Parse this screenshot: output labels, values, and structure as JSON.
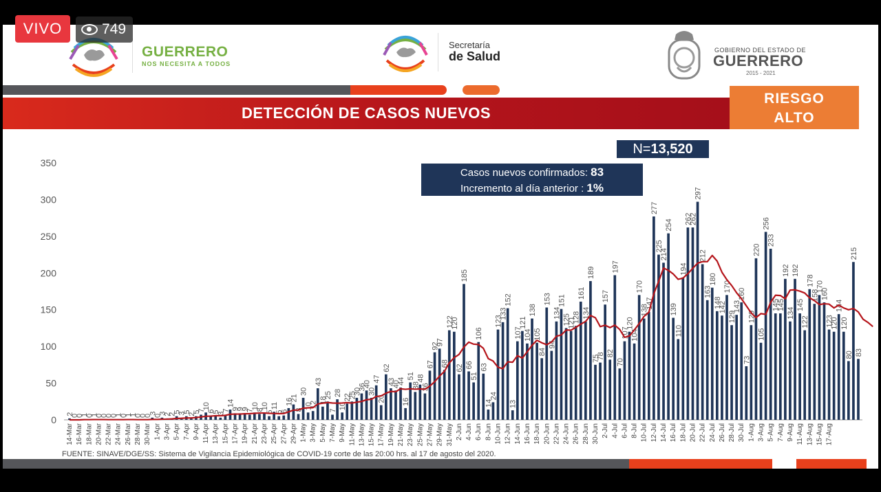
{
  "stream": {
    "live_label": "VIVO",
    "viewers": "749"
  },
  "header": {
    "brand_name": "GUERRERO",
    "brand_tagline": "NOS NECESITA A TODOS",
    "salud_line1": "Secretaría",
    "salud_line2": "de Salud",
    "gob_line1": "GOBIERNO DEL ESTADO DE",
    "gob_line2": "GUERRERO",
    "gob_period": "2015 - 2021"
  },
  "banner": {
    "title": "DETECCIÓN DE CASOS NUEVOS",
    "risk_line1": "RIESGO",
    "risk_line2": "ALTO"
  },
  "summary": {
    "n_label": "N=",
    "n_value": "13,520",
    "confirmed_label": "Casos nuevos confirmados:",
    "confirmed_value": "83",
    "increment_label": "Incremento al día anterior :",
    "increment_value": "1%"
  },
  "footer": {
    "source": "FUENTE: SINAVE/DGE/SS: Sistema de Vigilancia Epidemiológica de COVID-19 corte de las 20:00 hrs. al 17 de agosto del 2020."
  },
  "colors": {
    "bar": "#1f3558",
    "line": "#b5151b",
    "accent_orange": "#ec7d34",
    "accent_red": "#e8401c"
  },
  "chart_data": {
    "type": "bar",
    "ylim": [
      0,
      350
    ],
    "yticks": [
      0,
      50,
      100,
      150,
      200,
      250,
      300,
      350
    ],
    "grid": false,
    "x_tick_labels": [
      "14-Mar",
      "16-Mar",
      "18-Mar",
      "20-Mar",
      "22-Mar",
      "24-Mar",
      "26-Mar",
      "28-Mar",
      "30-Mar",
      "1-Apr",
      "3-Apr",
      "5-Apr",
      "7-Apr",
      "9-Apr",
      "11-Apr",
      "13-Apr",
      "15-Apr",
      "17-Apr",
      "19-Apr",
      "21-Apr",
      "23-Apr",
      "25-Apr",
      "27-Apr",
      "29-Apr",
      "1-May",
      "3-May",
      "5-May",
      "7-May",
      "9-May",
      "11-May",
      "13-May",
      "15-May",
      "17-May",
      "19-May",
      "21-May",
      "23-May",
      "25-May",
      "27-May",
      "29-May",
      "31-May",
      "2-Jun",
      "4-Jun",
      "6-Jun",
      "8-Jun",
      "10-Jun",
      "12-Jun",
      "14-Jun",
      "16-Jun",
      "18-Jun",
      "20-Jun",
      "22-Jun",
      "24-Jun",
      "26-Jun",
      "28-Jun",
      "30-Jun",
      "2-Jul",
      "4-Jul",
      "6-Jul",
      "8-Jul",
      "10-Jul",
      "12-Jul",
      "14-Jul",
      "16-Jul",
      "18-Jul",
      "20-Jul",
      "22-Jul",
      "24-Jul",
      "26-Jul",
      "28-Jul",
      "30-Jul",
      "1-Aug",
      "3-Aug",
      "5-Aug",
      "7-Aug",
      "9-Aug",
      "11-Aug",
      "13-Aug",
      "15-Aug",
      "17-Aug"
    ],
    "series": [
      {
        "type": "bar",
        "values": [
          2,
          0,
          0,
          1,
          0,
          1,
          0,
          0,
          0,
          0,
          1,
          0,
          1,
          1,
          0,
          0,
          0,
          3,
          0,
          3,
          2,
          2,
          5,
          3,
          5,
          2,
          5,
          7,
          10,
          6,
          5,
          3,
          7,
          14,
          9,
          9,
          9,
          7,
          10,
          8,
          10,
          5,
          11,
          5,
          6,
          16,
          21,
          8,
          30,
          10,
          12,
          43,
          18,
          25,
          7,
          28,
          10,
          22,
          25,
          30,
          36,
          40,
          30,
          47,
          20,
          62,
          43,
          40,
          44,
          16,
          51,
          38,
          48,
          36,
          67,
          92,
          97,
          68,
          122,
          120,
          62,
          185,
          66,
          51,
          106,
          63,
          14,
          24,
          123,
          133,
          152,
          13,
          107,
          121,
          104,
          138,
          105,
          84,
          153,
          94,
          134,
          151,
          125,
          121,
          128,
          161,
          134,
          189,
          75,
          78,
          157,
          82,
          197,
          70,
          107,
          120,
          104,
          170,
          138,
          147,
          277,
          225,
          214,
          254,
          139,
          110,
          194,
          262,
          262,
          297,
          212,
          163,
          180,
          148,
          142,
          170,
          129,
          143,
          160,
          73,
          129,
          220,
          105,
          256,
          233,
          145,
          145,
          192,
          134,
          192,
          145,
          122,
          178,
          158,
          170,
          160,
          123,
          120,
          144,
          120,
          80,
          215,
          83
        ]
      },
      {
        "type": "line",
        "name": "",
        "values": [
          0,
          0,
          0,
          0.3,
          0.3,
          0.4,
          0.4,
          0.4,
          0.3,
          0.3,
          0.3,
          0.3,
          0.4,
          0.4,
          0.3,
          0.3,
          0.3,
          0.6,
          0.6,
          0.9,
          1,
          1.3,
          1.9,
          2.1,
          2.6,
          2.6,
          3.1,
          3.9,
          4.9,
          5.1,
          5.6,
          5.6,
          6.1,
          7.6,
          7.9,
          7.9,
          8.3,
          8.4,
          8.9,
          9.3,
          9.3,
          8.9,
          8.7,
          8.4,
          8.6,
          10.9,
          13.2,
          13.4,
          15.9,
          16.4,
          16.6,
          21.7,
          22.7,
          23.6,
          22.9,
          22.7,
          22.9,
          23.4,
          22.9,
          24,
          25.1,
          27.4,
          28,
          31.9,
          32.6,
          36.3,
          38.7,
          38.3,
          42.3,
          41.6,
          42.3,
          41.7,
          42.1,
          41.6,
          46,
          52,
          59.6,
          66.1,
          77.6,
          84.7,
          89.1,
          99.1,
          105.9,
          103.1,
          102.6,
          97.4,
          83.4,
          80.1,
          71.6,
          69.7,
          79,
          78.5,
          87.4,
          84.1,
          92.7,
          101.6,
          108.4,
          104.9,
          102.3,
          106,
          113.9,
          115.6,
          122.4,
          122.1,
          126.1,
          130.3,
          134.1,
          142.1,
          139.1,
          127,
          128.9,
          125.6,
          129,
          123.1,
          112.4,
          114.3,
          122.4,
          131.1,
          141,
          146.6,
          171.6,
          188.6,
          206.7,
          203.6,
          198.6,
          191.4,
          193.1,
          199,
          206.4,
          213.4,
          215.4,
          215.4,
          223.9,
          216.3,
          201,
          190.9,
          182.9,
          173.1,
          165,
          155.4,
          145.6,
          139.3,
          144.7,
          143.6,
          160,
          169.7,
          169.3,
          164.9,
          176.7,
          177.1,
          175.3,
          172.7,
          166.1,
          162.4,
          157,
          158.1,
          157.6,
          152.4,
          156.3,
          152.4,
          149.9,
          151.7,
          146.9,
          136.9,
          132.6,
          127
        ]
      }
    ]
  }
}
